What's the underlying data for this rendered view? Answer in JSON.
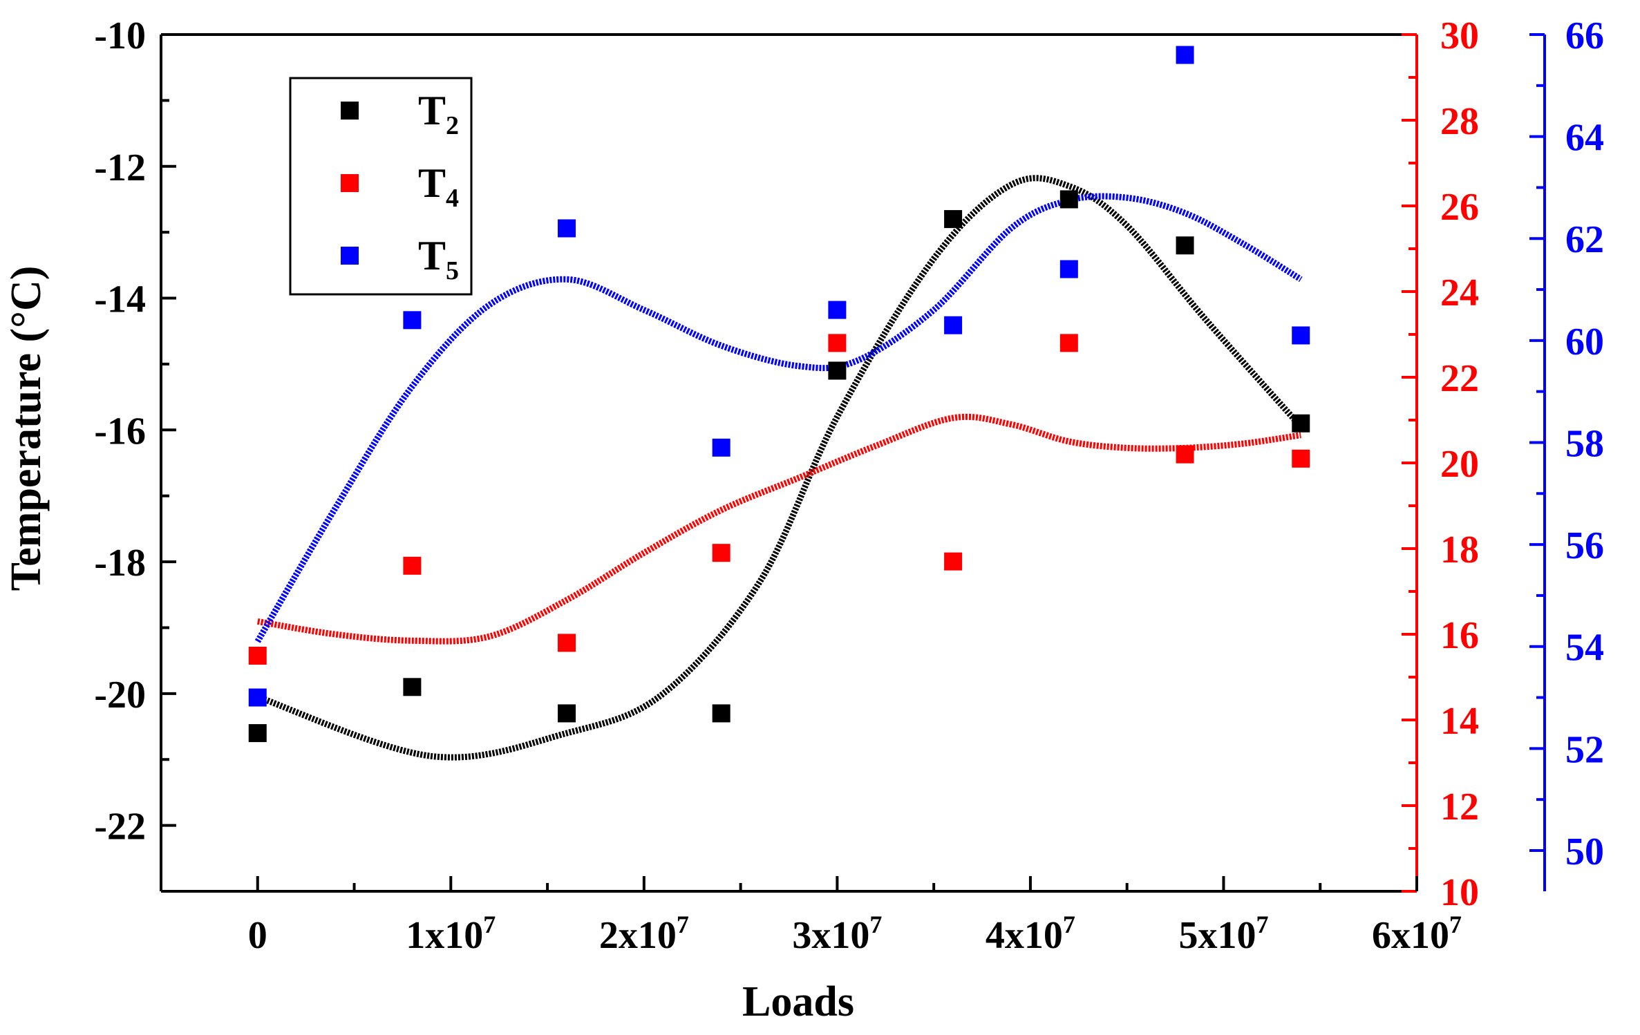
{
  "chart_data": {
    "type": "scatter",
    "title": "",
    "xlabel": "Loads",
    "ylabel_left": "Temperature (°C)",
    "xlim": [
      -5000000,
      60000000
    ],
    "x_ticks": [
      {
        "value": 0,
        "base": "0",
        "exp": ""
      },
      {
        "value": 10000000,
        "base": "1x10",
        "exp": "7"
      },
      {
        "value": 20000000,
        "base": "2x10",
        "exp": "7"
      },
      {
        "value": 30000000,
        "base": "3x10",
        "exp": "7"
      },
      {
        "value": 40000000,
        "base": "4x10",
        "exp": "7"
      },
      {
        "value": 50000000,
        "base": "5x10",
        "exp": "7"
      },
      {
        "value": 60000000,
        "base": "6x10",
        "exp": "7"
      }
    ],
    "axes": {
      "left": {
        "color": "#000000",
        "ylim": [
          -23,
          -10
        ],
        "ticks": [
          "-10",
          "-12",
          "-14",
          "-16",
          "-18",
          "-20",
          "-22"
        ],
        "tick_values": [
          -10,
          -12,
          -14,
          -16,
          -18,
          -20,
          -22
        ]
      },
      "right": {
        "color": "#ff0000",
        "ylim": [
          10,
          30
        ],
        "ticks": [
          "10",
          "12",
          "14",
          "16",
          "18",
          "20",
          "22",
          "24",
          "26",
          "28",
          "30"
        ],
        "tick_values": [
          10,
          12,
          14,
          16,
          18,
          20,
          22,
          24,
          26,
          28,
          30
        ]
      },
      "right2": {
        "color": "#0000ff",
        "ylim": [
          49.2,
          66
        ],
        "ticks": [
          "50",
          "52",
          "54",
          "56",
          "58",
          "60",
          "62",
          "64",
          "66"
        ],
        "tick_values": [
          50,
          52,
          54,
          56,
          58,
          60,
          62,
          64,
          66
        ]
      }
    },
    "x": [
      0,
      8000000,
      16000000,
      24000000,
      30000000,
      36000000,
      42000000,
      48000000,
      54000000
    ],
    "series": [
      {
        "name": "T",
        "sub": "2",
        "axis": "left",
        "color": "#000000",
        "values": [
          -20.6,
          -19.9,
          -20.3,
          -20.3,
          -15.1,
          -12.8,
          -12.5,
          -13.2,
          -15.9
        ],
        "fit_x": [
          0,
          9000000,
          16000000,
          21000000,
          26000000,
          30000000,
          35000000,
          39000000,
          42000000,
          45000000,
          49000000,
          54000000
        ],
        "fit_y": [
          -20.05,
          -20.95,
          -20.6,
          -20.0,
          -18.3,
          -15.8,
          -13.4,
          -12.28,
          -12.3,
          -12.9,
          -14.3,
          -15.95
        ]
      },
      {
        "name": "T",
        "sub": "4",
        "axis": "right",
        "color": "#ff0000",
        "values": [
          15.5,
          17.6,
          15.8,
          17.9,
          22.8,
          17.7,
          22.8,
          20.2,
          20.1
        ],
        "fit_x": [
          0,
          4000000,
          8000000,
          12000000,
          16000000,
          20000000,
          24000000,
          28000000,
          32000000,
          36000000,
          39000000,
          42000000,
          45000000,
          48000000,
          51000000,
          54000000
        ],
        "fit_y": [
          16.3,
          16.0,
          15.85,
          15.95,
          16.8,
          17.9,
          18.9,
          19.65,
          20.4,
          21.05,
          20.9,
          20.5,
          20.35,
          20.35,
          20.45,
          20.65
        ]
      },
      {
        "name": "T",
        "sub": "5",
        "axis": "right2",
        "color": "#0000ff",
        "values": [
          53.0,
          60.4,
          62.2,
          57.9,
          60.6,
          60.3,
          61.4,
          65.6,
          60.1
        ],
        "fit_x": [
          0,
          4000000,
          8000000,
          12000000,
          16000000,
          20000000,
          24000000,
          28000000,
          31000000,
          35000000,
          39000000,
          42000000,
          45000000,
          48000000,
          51000000,
          54000000
        ],
        "fit_y": [
          54.1,
          56.7,
          59.1,
          60.7,
          61.2,
          60.6,
          59.9,
          59.5,
          59.6,
          60.6,
          62.2,
          62.75,
          62.8,
          62.5,
          61.9,
          61.2
        ]
      }
    ],
    "legend": {
      "position": "top-left",
      "entries": [
        {
          "label": "T",
          "sub": "2",
          "color": "#000000"
        },
        {
          "label": "T",
          "sub": "4",
          "color": "#ff0000"
        },
        {
          "label": "T",
          "sub": "5",
          "color": "#0000ff"
        }
      ]
    },
    "grid": false
  }
}
